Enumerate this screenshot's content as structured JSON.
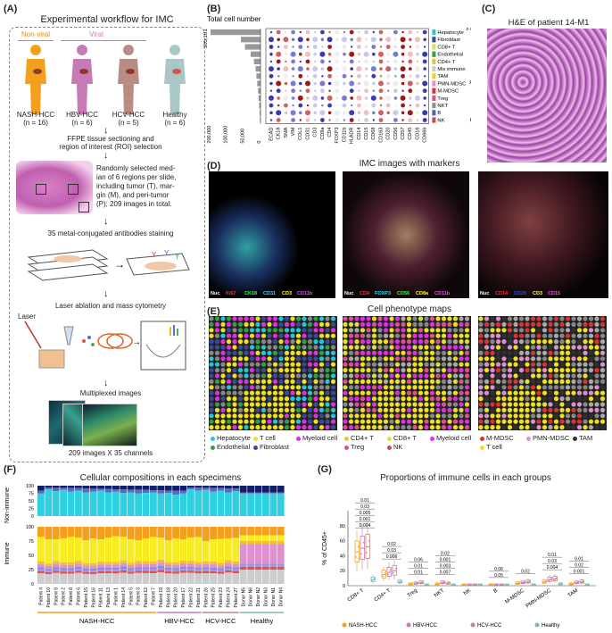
{
  "panels": {
    "A": "(A)",
    "B": "(B)",
    "C": "(C)",
    "D": "(D)",
    "E": "(E)",
    "F": "(F)",
    "G": "(G)"
  },
  "workflow": {
    "title": "Experimental workflow for IMC",
    "nonviral_label": "Non-viral",
    "viral_label": "Viral",
    "groups": [
      {
        "name": "NASH-HCC",
        "n": "(n = 16)",
        "color": "#f4a01c"
      },
      {
        "name": "HBV-HCC",
        "n": "(n = 6)",
        "color": "#c77ab7"
      },
      {
        "name": "HCV-HCC",
        "n": "(n = 5)",
        "color": "#b98c86"
      },
      {
        "name": "Healthy",
        "n": "(n = 6)",
        "color": "#a9c7c5"
      }
    ],
    "step1": [
      "FFPE tissue sectioning and",
      "region of interest (ROI) selection"
    ],
    "step2": [
      "Randomly selected med-",
      "ian of 6 regions per slide,",
      "including tumor (T), mar-",
      "gin (M), and peri-tumor",
      "(P); 209 images in total."
    ],
    "step3": "35 metal-conjugated antibodies staining",
    "step4": "Laser ablation and mass cytometry",
    "laser": "Laser",
    "step5": "Multiplexed images",
    "footer": "209 images X 35 channels"
  },
  "panelB": {
    "title": "Total cell number",
    "max_label": "305,101",
    "bar_values": [
      305101,
      120000,
      95000,
      60000,
      40000,
      30000,
      25000,
      20000,
      15000,
      12000,
      8000,
      5000,
      3000
    ],
    "bar_axis_ticks": [
      "200,000",
      "100,000",
      "50,000",
      "0"
    ],
    "cell_types": [
      {
        "name": "Hepatocyte",
        "color": "#1fc8dc"
      },
      {
        "name": "Fibroblast",
        "color": "#3a4a9a"
      },
      {
        "name": "CD8+ T",
        "color": "#d8e050"
      },
      {
        "name": "Endothelial",
        "color": "#30a040"
      },
      {
        "name": "CD4+ T",
        "color": "#f0c030"
      },
      {
        "name": "Mix immune",
        "color": "#cccccc"
      },
      {
        "name": "TAM",
        "color": "#f0d020"
      },
      {
        "name": "PMN-MDSC",
        "color": "#e090d0"
      },
      {
        "name": "M-MDSC",
        "color": "#e03030"
      },
      {
        "name": "Treg",
        "color": "#e05090"
      },
      {
        "name": "NKT",
        "color": "#909090"
      },
      {
        "name": "B",
        "color": "#5060c0"
      },
      {
        "name": "NK",
        "color": "#c05050"
      }
    ],
    "markers": [
      "ECAD",
      "CK18",
      "SMA",
      "VIM",
      "COL1",
      "CD31",
      "CD3",
      "CD8a",
      "CD4",
      "FOXP3",
      "CD11b",
      "HLADR",
      "CD14",
      "CD15",
      "CD68",
      "CD163",
      "CD20",
      "CD56",
      "CD57",
      "CD45",
      "CD16",
      "CD66b"
    ],
    "colorbar_title": "z-scored Exp",
    "colorbar_ticks": [
      "3.0",
      "2.0",
      "1.0",
      "0.0",
      "-1.0",
      "-2.0",
      "-3.0"
    ],
    "size_title": "Pct.exp",
    "size_ticks": [
      "0",
      "25",
      "50",
      "75",
      "100"
    ]
  },
  "panelC": {
    "title": "H&E of patient 14-M1"
  },
  "panelD": {
    "title": "IMC images with markers",
    "images": [
      {
        "markers": [
          {
            "t": "Nuc",
            "c": "#ffffff"
          },
          {
            "t": "Ki67",
            "c": "#ff3030"
          },
          {
            "t": "CK18",
            "c": "#30ff30"
          },
          {
            "t": "CD31",
            "c": "#30e0ff"
          },
          {
            "t": "CD3",
            "c": "#ffff30"
          },
          {
            "t": "CD11b",
            "c": "#ff40ff"
          }
        ]
      },
      {
        "markers": [
          {
            "t": "Nuc",
            "c": "#ffffff"
          },
          {
            "t": "CD4",
            "c": "#ff3030"
          },
          {
            "t": "FOXP3",
            "c": "#30e0ff"
          },
          {
            "t": "CD56",
            "c": "#30ff30"
          },
          {
            "t": "CD8a",
            "c": "#ffff30"
          },
          {
            "t": "CD11b",
            "c": "#ff40ff"
          }
        ]
      },
      {
        "markers": [
          {
            "t": "Nuc",
            "c": "#ffffff"
          },
          {
            "t": "CD14",
            "c": "#ff3030"
          },
          {
            "t": "CD20",
            "c": "#3050ff"
          },
          {
            "t": "CD3",
            "c": "#ffff30"
          },
          {
            "t": "CD15",
            "c": "#ff40ff"
          }
        ]
      }
    ]
  },
  "panelE": {
    "title": "Cell phenotype maps",
    "legends": [
      [
        {
          "t": "Hepatocyte",
          "c": "#1fc8dc"
        },
        {
          "t": "T cell",
          "c": "#f0e020"
        },
        {
          "t": "Myeloid cell",
          "c": "#e030e0"
        },
        {
          "t": "Endothelial",
          "c": "#30a040"
        },
        {
          "t": "Fibroblast",
          "c": "#3a4a9a"
        }
      ],
      [
        {
          "t": "CD4+ T",
          "c": "#f0c030"
        },
        {
          "t": "CD8+ T",
          "c": "#e0e030"
        },
        {
          "t": "Myeloid cell",
          "c": "#e030e0"
        },
        {
          "t": "Treg",
          "c": "#e05090"
        },
        {
          "t": "NK",
          "c": "#c05050"
        }
      ],
      [
        {
          "t": "M-MDSC",
          "c": "#e03030"
        },
        {
          "t": "PMN-MDSC",
          "c": "#e090d0"
        },
        {
          "t": "TAM",
          "c": "#303030"
        },
        {
          "t": "T cell",
          "c": "#f0e020"
        }
      ]
    ]
  },
  "panelF": {
    "title": "Cellular compositions in each specimens",
    "ylabel_top": "Non-immune",
    "ylabel_bottom": "Immune",
    "yticks": [
      "100",
      "75",
      "50",
      "25",
      "0"
    ],
    "samples": [
      "Patient 4",
      "Patient 10",
      "Patient 9",
      "Patient 2",
      "Patient 8",
      "Patient 6",
      "Patient 15",
      "Patient 16",
      "Patient 11",
      "Patient 13",
      "Patient 1",
      "Patient 14",
      "Patient 5",
      "Patient 3",
      "Patient 12",
      "Patient 7",
      "Patient 19",
      "Patient 18",
      "Patient 20",
      "Patient 17",
      "Patient 22",
      "Patient 21",
      "Patient 26",
      "Patient 25",
      "Patient 23",
      "Patient 24",
      "Patient 27",
      "Donor N5",
      "Donor N6",
      "Donor N2",
      "Donor N3",
      "Donor N1",
      "Donor N4"
    ],
    "groups": [
      {
        "name": "NASH-HCC",
        "color": "#f4a01c",
        "count": 16
      },
      {
        "name": "HBV-HCC",
        "color": "#c77ab7",
        "count": 6
      },
      {
        "name": "HCV-HCC",
        "color": "#b98c86",
        "count": 5
      },
      {
        "name": "Healthy",
        "color": "#7fb8b5",
        "count": 6
      }
    ]
  },
  "chart_data": {
    "type": "box",
    "title": "Proportions of immune cells in each groups",
    "ylabel": "% of CD45+",
    "yticks": [
      "0",
      "20",
      "40",
      "60",
      "80"
    ],
    "ylim": [
      0,
      100
    ],
    "categories": [
      "CD8+ T",
      "CD4+ T",
      "Treg",
      "NKT",
      "NK",
      "B",
      "M-MDSC",
      "PMN-MDSC",
      "TAM"
    ],
    "series": [
      {
        "name": "NASH-HCC",
        "color": "#f4a01c",
        "medians": [
          45,
          15,
          2,
          2,
          1,
          1,
          3,
          5,
          2
        ]
      },
      {
        "name": "HBV-HCC",
        "color": "#c77ab7",
        "medians": [
          50,
          18,
          3,
          4,
          1,
          1,
          4,
          8,
          4
        ]
      },
      {
        "name": "HCV-HCC",
        "color": "#b98c86",
        "medians": [
          52,
          20,
          4,
          3,
          1,
          1,
          5,
          9,
          5
        ]
      },
      {
        "name": "Healthy",
        "color": "#7fb8b5",
        "medians": [
          8,
          5,
          1,
          1,
          1,
          1,
          1,
          2,
          1
        ]
      }
    ],
    "pvalues": [
      [
        "0.004",
        "0.001",
        "0.005",
        "0.03",
        "0.01"
      ],
      [
        "0.006",
        "0.03",
        "0.02"
      ],
      [
        "0.01",
        "0.01",
        "0.06"
      ],
      [
        "0.007",
        "0.003",
        "0.001",
        "0.02"
      ],
      [],
      [
        "0.05",
        "0.06"
      ],
      [
        "0.02"
      ],
      [
        "0.004",
        "0.03",
        "0.01"
      ],
      [
        "0.001",
        "0.02",
        "0.01"
      ]
    ]
  }
}
